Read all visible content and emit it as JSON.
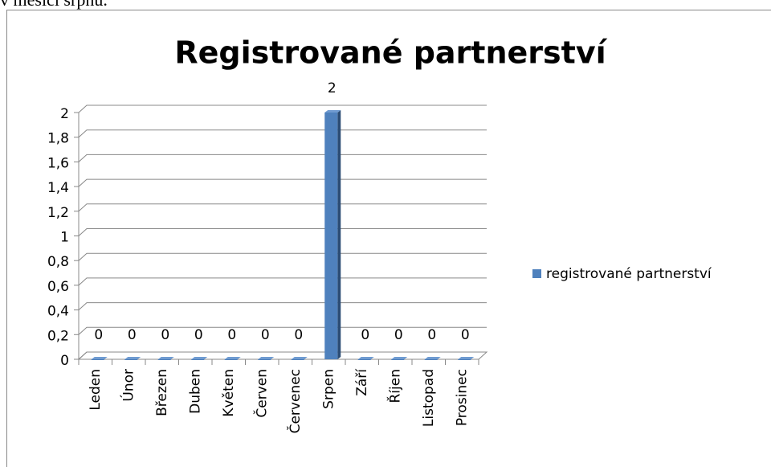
{
  "header": "v měsíci srpnu.",
  "chart_data": {
    "type": "bar3d",
    "title": "Registrované partnerství",
    "categories": [
      "Leden",
      "Únor",
      "Březen",
      "Duben",
      "Květen",
      "Červen",
      "Červenec",
      "Srpen",
      "Září",
      "Říjen",
      "Listopad",
      "Prosinec"
    ],
    "series": [
      {
        "name": "registrované partnerství",
        "color": "#4f81bd",
        "values": [
          0,
          0,
          0,
          0,
          0,
          0,
          0,
          2,
          0,
          0,
          0,
          0
        ]
      }
    ],
    "ylim": [
      0,
      2
    ],
    "yticks": [
      0,
      {
        "value": 0.2,
        "label": "0,2"
      },
      {
        "value": 0.4,
        "label": "0,4"
      },
      {
        "value": 0.6,
        "label": "0,6"
      },
      {
        "value": 0.8,
        "label": "0,8"
      },
      1,
      {
        "value": 1.2,
        "label": "1,2"
      },
      {
        "value": 1.4,
        "label": "1,4"
      },
      {
        "value": 1.6,
        "label": "1,6"
      },
      {
        "value": 1.8,
        "label": "1,8"
      },
      2
    ],
    "grid": true,
    "legend": "right"
  }
}
